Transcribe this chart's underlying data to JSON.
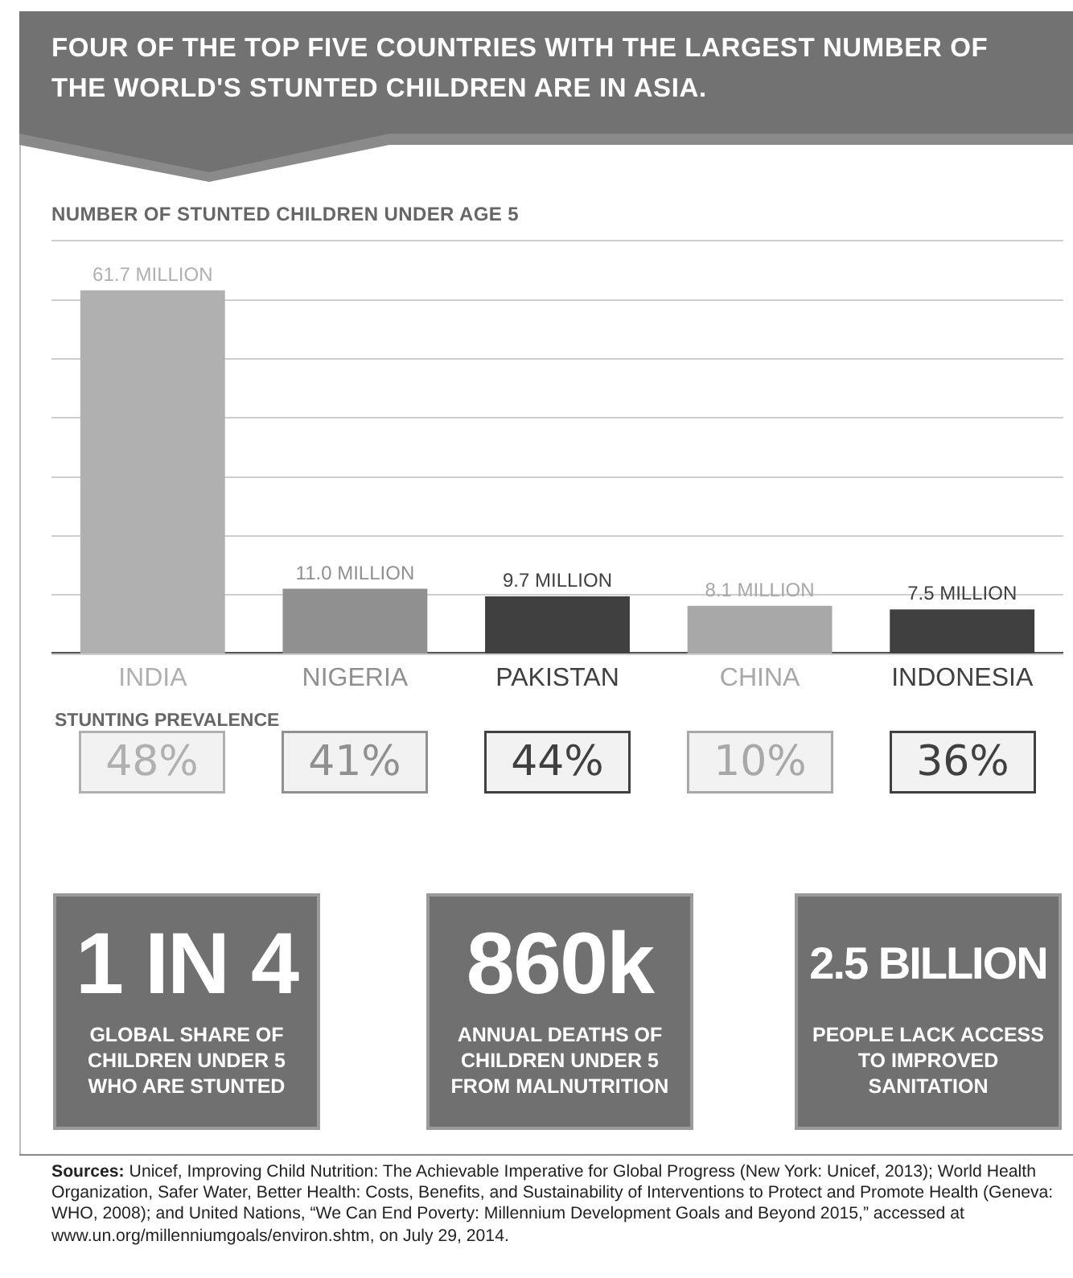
{
  "chart_data": {
    "type": "bar",
    "title": "FOUR OF THE TOP FIVE COUNTRIES WITH THE LARGEST NUMBER OF THE WORLD'S STUNTED CHILDREN ARE IN ASIA.",
    "subtitle": "NUMBER OF STUNTED CHILDREN UNDER AGE 5",
    "categories": [
      "INDIA",
      "NIGERIA",
      "PAKISTAN",
      "CHINA",
      "INDONESIA"
    ],
    "values": [
      61.7,
      11.0,
      9.7,
      8.1,
      7.5
    ],
    "colors": [
      "#b0b0b0",
      "#909090",
      "#404040",
      "#a8a8a8",
      "#404040"
    ],
    "value_labels": [
      "61.7 MILLION",
      "11.0 MILLION",
      "9.7 MILLION",
      "8.1 MILLION",
      "7.5 MILLION"
    ],
    "ylim": [
      0,
      70
    ],
    "yticks": [
      {
        "value": 0,
        "label": null
      },
      {
        "value": 10,
        "label": null
      },
      {
        "value": 20,
        "label": null
      },
      {
        "value": 30,
        "label": null
      },
      {
        "value": 40,
        "label": null
      },
      {
        "value": 50,
        "label": null
      },
      {
        "value": 60,
        "label": null
      }
    ],
    "grid": "y",
    "legend": false,
    "tick_labels": "x",
    "annotations": [
      "STUNTING PREVALENCE",
      "48%",
      "41%",
      "44%",
      "10%",
      "36%",
      "1 IN 4",
      "GLOBAL SHARE OF CHILDREN UNDER 5 WHO ARE STUNTED",
      "860k",
      "ANNUAL DEATHS OF CHILDREN UNDER 5 FROM MALNUTRITION",
      "2.5 BILLION",
      "PEOPLE LACK ACCESS TO IMPROVED SANITATION",
      "Sources: Unicef, Improving Child Nutrition: The Achievable Imperative for Global Progress (New York: Unicef, 2013); World Health Organization, Safer Water, Better Health: Costs, Benefits, and Sustainability of Interventions to Protect and Promote Health (Geneva: WHO, 2008); and United Nations, “We Can End Poverty: Millennium Development Goals and Beyond 2015,” accessed at www.un.org/millenniumgoals/environ.shtm, on July 29, 2014."
    ]
  }
}
